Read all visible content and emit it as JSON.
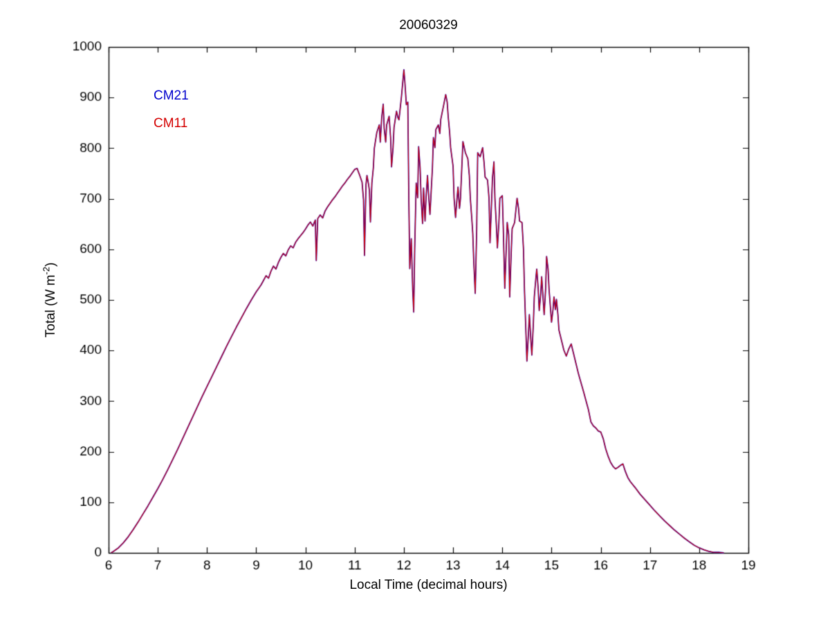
{
  "chart_data": {
    "type": "line",
    "title": "20060329",
    "xlabel": "Local Time (decimal hours)",
    "ylabel_pre": "Total (W m",
    "ylabel_sup": "-2",
    "ylabel_post": ")",
    "xlim": [
      6,
      19
    ],
    "ylim": [
      0,
      1000
    ],
    "xticks": [
      6,
      7,
      8,
      9,
      10,
      11,
      12,
      13,
      14,
      15,
      16,
      17,
      18,
      19
    ],
    "yticks": [
      0,
      100,
      200,
      300,
      400,
      500,
      600,
      700,
      800,
      900,
      1000
    ],
    "grid": false,
    "legend_position": "upper-left-inside",
    "series": [
      {
        "name": "CM21",
        "color": "#0000cd",
        "linewidth": 1.8
      },
      {
        "name": "CM11",
        "color": "#d40000",
        "linewidth": 1.1
      }
    ],
    "points": [
      [
        6.05,
        0
      ],
      [
        6.1,
        3
      ],
      [
        6.2,
        10
      ],
      [
        6.3,
        20
      ],
      [
        6.4,
        32
      ],
      [
        6.5,
        46
      ],
      [
        6.6,
        61
      ],
      [
        6.7,
        77
      ],
      [
        6.8,
        93
      ],
      [
        6.9,
        110
      ],
      [
        7.0,
        127
      ],
      [
        7.1,
        145
      ],
      [
        7.2,
        164
      ],
      [
        7.3,
        184
      ],
      [
        7.4,
        204
      ],
      [
        7.5,
        225
      ],
      [
        7.6,
        246
      ],
      [
        7.7,
        267
      ],
      [
        7.8,
        288
      ],
      [
        7.9,
        309
      ],
      [
        8.0,
        329
      ],
      [
        8.1,
        349
      ],
      [
        8.2,
        369
      ],
      [
        8.3,
        389
      ],
      [
        8.4,
        409
      ],
      [
        8.5,
        428
      ],
      [
        8.6,
        447
      ],
      [
        8.7,
        465
      ],
      [
        8.8,
        483
      ],
      [
        8.9,
        500
      ],
      [
        9.0,
        516
      ],
      [
        9.05,
        523
      ],
      [
        9.1,
        530
      ],
      [
        9.15,
        539
      ],
      [
        9.2,
        548
      ],
      [
        9.25,
        543
      ],
      [
        9.3,
        557
      ],
      [
        9.35,
        567
      ],
      [
        9.4,
        561
      ],
      [
        9.45,
        574
      ],
      [
        9.5,
        584
      ],
      [
        9.55,
        592
      ],
      [
        9.6,
        587
      ],
      [
        9.65,
        599
      ],
      [
        9.7,
        607
      ],
      [
        9.75,
        603
      ],
      [
        9.8,
        614
      ],
      [
        9.85,
        621
      ],
      [
        9.9,
        627
      ],
      [
        9.95,
        633
      ],
      [
        10.0,
        640
      ],
      [
        10.05,
        648
      ],
      [
        10.1,
        654
      ],
      [
        10.15,
        646
      ],
      [
        10.2,
        658
      ],
      [
        10.22,
        578
      ],
      [
        10.25,
        661
      ],
      [
        10.3,
        668
      ],
      [
        10.35,
        662
      ],
      [
        10.4,
        676
      ],
      [
        10.45,
        684
      ],
      [
        10.5,
        691
      ],
      [
        10.55,
        698
      ],
      [
        10.6,
        704
      ],
      [
        10.65,
        711
      ],
      [
        10.7,
        718
      ],
      [
        10.75,
        725
      ],
      [
        10.8,
        731
      ],
      [
        10.85,
        738
      ],
      [
        10.9,
        744
      ],
      [
        10.95,
        751
      ],
      [
        11.0,
        758
      ],
      [
        11.05,
        760
      ],
      [
        11.08,
        752
      ],
      [
        11.1,
        747
      ],
      [
        11.15,
        733
      ],
      [
        11.18,
        698
      ],
      [
        11.2,
        588
      ],
      [
        11.23,
        728
      ],
      [
        11.25,
        746
      ],
      [
        11.28,
        730
      ],
      [
        11.3,
        716
      ],
      [
        11.32,
        654
      ],
      [
        11.35,
        731
      ],
      [
        11.38,
        762
      ],
      [
        11.4,
        800
      ],
      [
        11.45,
        831
      ],
      [
        11.5,
        846
      ],
      [
        11.52,
        812
      ],
      [
        11.55,
        861
      ],
      [
        11.58,
        887
      ],
      [
        11.6,
        839
      ],
      [
        11.63,
        812
      ],
      [
        11.65,
        846
      ],
      [
        11.7,
        863
      ],
      [
        11.73,
        821
      ],
      [
        11.75,
        763
      ],
      [
        11.78,
        801
      ],
      [
        11.8,
        841
      ],
      [
        11.85,
        873
      ],
      [
        11.88,
        860
      ],
      [
        11.9,
        856
      ],
      [
        11.95,
        901
      ],
      [
        12.0,
        955
      ],
      [
        12.02,
        931
      ],
      [
        12.05,
        886
      ],
      [
        12.08,
        891
      ],
      [
        12.1,
        702
      ],
      [
        12.12,
        562
      ],
      [
        12.15,
        621
      ],
      [
        12.18,
        519
      ],
      [
        12.2,
        476
      ],
      [
        12.22,
        601
      ],
      [
        12.25,
        731
      ],
      [
        12.28,
        702
      ],
      [
        12.3,
        803
      ],
      [
        12.33,
        761
      ],
      [
        12.35,
        701
      ],
      [
        12.38,
        651
      ],
      [
        12.4,
        721
      ],
      [
        12.43,
        656
      ],
      [
        12.45,
        701
      ],
      [
        12.48,
        746
      ],
      [
        12.5,
        711
      ],
      [
        12.53,
        669
      ],
      [
        12.55,
        706
      ],
      [
        12.58,
        761
      ],
      [
        12.6,
        821
      ],
      [
        12.63,
        801
      ],
      [
        12.65,
        837
      ],
      [
        12.7,
        846
      ],
      [
        12.73,
        829
      ],
      [
        12.75,
        857
      ],
      [
        12.8,
        881
      ],
      [
        12.85,
        906
      ],
      [
        12.88,
        891
      ],
      [
        12.9,
        863
      ],
      [
        12.93,
        831
      ],
      [
        12.95,
        801
      ],
      [
        13.0,
        764
      ],
      [
        13.02,
        701
      ],
      [
        13.05,
        663
      ],
      [
        13.08,
        701
      ],
      [
        13.1,
        723
      ],
      [
        13.13,
        681
      ],
      [
        13.15,
        701
      ],
      [
        13.2,
        813
      ],
      [
        13.25,
        791
      ],
      [
        13.3,
        779
      ],
      [
        13.33,
        746
      ],
      [
        13.35,
        701
      ],
      [
        13.38,
        661
      ],
      [
        13.4,
        631
      ],
      [
        13.42,
        576
      ],
      [
        13.45,
        513
      ],
      [
        13.48,
        641
      ],
      [
        13.5,
        791
      ],
      [
        13.55,
        783
      ],
      [
        13.6,
        801
      ],
      [
        13.63,
        771
      ],
      [
        13.65,
        743
      ],
      [
        13.7,
        737
      ],
      [
        13.73,
        701
      ],
      [
        13.75,
        613
      ],
      [
        13.78,
        689
      ],
      [
        13.8,
        741
      ],
      [
        13.83,
        773
      ],
      [
        13.85,
        701
      ],
      [
        13.88,
        646
      ],
      [
        13.9,
        603
      ],
      [
        13.93,
        651
      ],
      [
        13.95,
        701
      ],
      [
        14.0,
        706
      ],
      [
        14.02,
        641
      ],
      [
        14.05,
        523
      ],
      [
        14.08,
        601
      ],
      [
        14.1,
        653
      ],
      [
        14.13,
        629
      ],
      [
        14.15,
        506
      ],
      [
        14.18,
        591
      ],
      [
        14.2,
        641
      ],
      [
        14.25,
        653
      ],
      [
        14.3,
        701
      ],
      [
        14.33,
        681
      ],
      [
        14.35,
        656
      ],
      [
        14.4,
        653
      ],
      [
        14.43,
        601
      ],
      [
        14.45,
        521
      ],
      [
        14.5,
        379
      ],
      [
        14.53,
        431
      ],
      [
        14.55,
        471
      ],
      [
        14.58,
        421
      ],
      [
        14.6,
        391
      ],
      [
        14.63,
        451
      ],
      [
        14.65,
        506
      ],
      [
        14.68,
        541
      ],
      [
        14.7,
        561
      ],
      [
        14.73,
        521
      ],
      [
        14.75,
        479
      ],
      [
        14.78,
        511
      ],
      [
        14.8,
        546
      ],
      [
        14.83,
        501
      ],
      [
        14.85,
        471
      ],
      [
        14.88,
        521
      ],
      [
        14.9,
        586
      ],
      [
        14.93,
        561
      ],
      [
        14.95,
        521
      ],
      [
        15.0,
        456
      ],
      [
        15.03,
        481
      ],
      [
        15.05,
        506
      ],
      [
        15.08,
        481
      ],
      [
        15.1,
        501
      ],
      [
        15.13,
        471
      ],
      [
        15.15,
        441
      ],
      [
        15.2,
        421
      ],
      [
        15.25,
        401
      ],
      [
        15.3,
        389
      ],
      [
        15.35,
        403
      ],
      [
        15.4,
        413
      ],
      [
        15.45,
        393
      ],
      [
        15.5,
        373
      ],
      [
        15.55,
        353
      ],
      [
        15.6,
        336
      ],
      [
        15.65,
        319
      ],
      [
        15.7,
        301
      ],
      [
        15.75,
        283
      ],
      [
        15.8,
        259
      ],
      [
        15.85,
        251
      ],
      [
        15.9,
        247
      ],
      [
        15.95,
        241
      ],
      [
        16.0,
        239
      ],
      [
        16.05,
        226
      ],
      [
        16.1,
        206
      ],
      [
        16.15,
        191
      ],
      [
        16.2,
        179
      ],
      [
        16.25,
        171
      ],
      [
        16.3,
        166
      ],
      [
        16.35,
        169
      ],
      [
        16.4,
        173
      ],
      [
        16.45,
        176
      ],
      [
        16.5,
        161
      ],
      [
        16.55,
        149
      ],
      [
        16.6,
        141
      ],
      [
        16.7,
        129
      ],
      [
        16.8,
        116
      ],
      [
        16.9,
        105
      ],
      [
        17.0,
        94
      ],
      [
        17.1,
        83
      ],
      [
        17.2,
        73
      ],
      [
        17.3,
        63
      ],
      [
        17.4,
        54
      ],
      [
        17.5,
        45
      ],
      [
        17.6,
        37
      ],
      [
        17.7,
        29
      ],
      [
        17.8,
        22
      ],
      [
        17.9,
        15
      ],
      [
        18.0,
        10
      ],
      [
        18.1,
        6
      ],
      [
        18.2,
        3
      ],
      [
        18.3,
        1
      ],
      [
        18.4,
        1
      ],
      [
        18.5,
        0
      ]
    ]
  }
}
